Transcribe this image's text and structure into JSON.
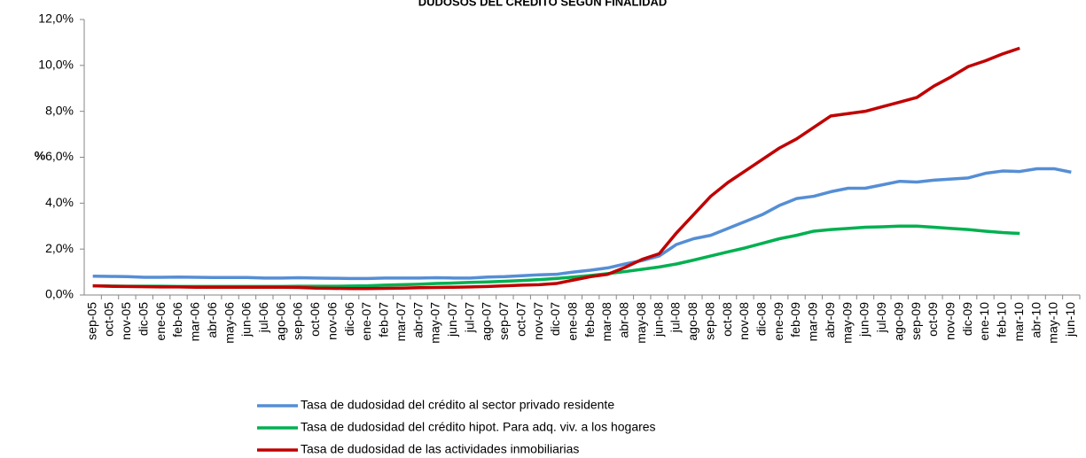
{
  "chart_data": {
    "type": "line",
    "title": "DUDOSOS DEL CRÉDITO SEGÚN FINALIDAD",
    "y_label": "%",
    "categories": [
      "sep-05",
      "oct-05",
      "nov-05",
      "dic-05",
      "ene-06",
      "feb-06",
      "mar-06",
      "abr-06",
      "may-06",
      "jun-06",
      "jul-06",
      "ago-06",
      "sep-06",
      "oct-06",
      "nov-06",
      "dic-06",
      "ene-07",
      "feb-07",
      "mar-07",
      "abr-07",
      "may-07",
      "jun-07",
      "jul-07",
      "ago-07",
      "sep-07",
      "oct-07",
      "nov-07",
      "dic-07",
      "ene-08",
      "feb-08",
      "mar-08",
      "abr-08",
      "may-08",
      "jun-08",
      "jul-08",
      "ago-08",
      "sep-08",
      "oct-08",
      "nov-08",
      "dic-08",
      "ene-09",
      "feb-09",
      "mar-09",
      "abr-09",
      "may-09",
      "jun-09",
      "jul-09",
      "ago-09",
      "sep-09",
      "oct-09",
      "nov-09",
      "dic-09",
      "ene-10",
      "feb-10",
      "mar-10",
      "abr-10",
      "may-10",
      "jun-10"
    ],
    "series": [
      {
        "name": "Tasa de dudosidad del crédito al sector privado residente",
        "color": "#558ed5",
        "values": [
          0.82,
          0.81,
          0.8,
          0.77,
          0.77,
          0.78,
          0.77,
          0.76,
          0.76,
          0.76,
          0.74,
          0.74,
          0.75,
          0.74,
          0.73,
          0.72,
          0.72,
          0.74,
          0.74,
          0.74,
          0.75,
          0.74,
          0.74,
          0.78,
          0.8,
          0.84,
          0.88,
          0.9,
          1.0,
          1.08,
          1.18,
          1.35,
          1.5,
          1.7,
          2.2,
          2.45,
          2.6,
          2.9,
          3.2,
          3.5,
          3.9,
          4.2,
          4.3,
          4.5,
          4.65,
          4.65,
          4.8,
          4.95,
          4.92,
          5.0,
          5.05,
          5.1,
          5.3,
          5.4,
          5.38,
          5.5,
          5.5,
          5.35
        ]
      },
      {
        "name": "Tasa de dudosidad del crédito hipot. Para adq. viv. a los hogares",
        "color": "#00b050",
        "values": [
          0.4,
          0.39,
          0.38,
          0.38,
          0.38,
          0.37,
          0.37,
          0.37,
          0.37,
          0.37,
          0.37,
          0.37,
          0.38,
          0.38,
          0.38,
          0.39,
          0.4,
          0.43,
          0.45,
          0.47,
          0.5,
          0.52,
          0.55,
          0.57,
          0.6,
          0.63,
          0.67,
          0.72,
          0.78,
          0.85,
          0.93,
          1.02,
          1.12,
          1.22,
          1.35,
          1.52,
          1.7,
          1.88,
          2.05,
          2.25,
          2.45,
          2.6,
          2.78,
          2.85,
          2.9,
          2.95,
          2.97,
          3.0,
          3.0,
          2.95,
          2.9,
          2.85,
          2.78,
          2.72,
          2.68,
          null,
          null,
          null
        ]
      },
      {
        "name": "Tasa de dudosidad de las actividades inmobiliarias",
        "color": "#c00000",
        "values": [
          0.4,
          0.38,
          0.37,
          0.36,
          0.35,
          0.35,
          0.34,
          0.34,
          0.34,
          0.34,
          0.34,
          0.34,
          0.33,
          0.3,
          0.29,
          0.28,
          0.28,
          0.29,
          0.3,
          0.32,
          0.33,
          0.34,
          0.35,
          0.37,
          0.4,
          0.43,
          0.45,
          0.5,
          0.65,
          0.8,
          0.9,
          1.2,
          1.55,
          1.8,
          2.7,
          3.5,
          4.3,
          4.9,
          5.4,
          5.9,
          6.4,
          6.8,
          7.3,
          7.8,
          7.9,
          8.0,
          8.2,
          8.4,
          8.6,
          9.1,
          9.5,
          9.95,
          10.2,
          10.5,
          10.75,
          null,
          null,
          null
        ]
      }
    ],
    "ylim": [
      0,
      12
    ],
    "yticks": [
      {
        "value": 0,
        "label": "0,0%"
      },
      {
        "value": 2,
        "label": "2,0%"
      },
      {
        "value": 4,
        "label": "4,0%"
      },
      {
        "value": 6,
        "label": "6,0%"
      },
      {
        "value": 8,
        "label": "8,0%"
      },
      {
        "value": 10,
        "label": "10,0%"
      },
      {
        "value": 12,
        "label": "12,0%"
      }
    ],
    "grid": false
  }
}
